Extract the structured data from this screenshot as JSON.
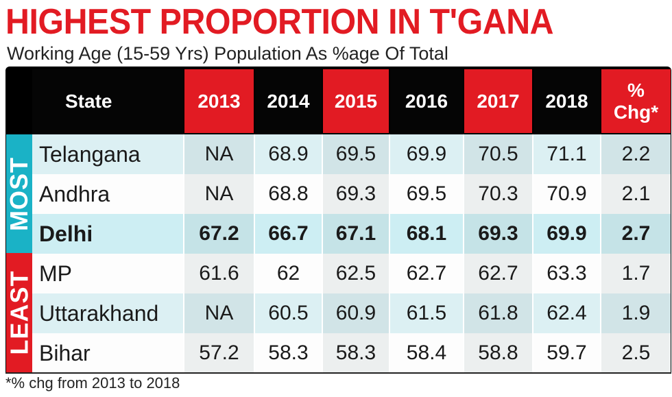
{
  "title": "HIGHEST PROPORTION IN T'GANA",
  "subtitle": "Working Age (15-59 Yrs) Population As %age Of Total",
  "footnote": "*% chg from 2013 to 2018",
  "side_labels": {
    "most": "MOST",
    "least": "LEAST"
  },
  "colors": {
    "red": "#e21b23",
    "teal": "#1ab2c6",
    "black": "#050505"
  },
  "chart_data": {
    "type": "table",
    "title": "HIGHEST PROPORTION IN T'GANA",
    "subtitle": "Working Age (15-59 Yrs) Population As %age Of Total",
    "columns": [
      "State",
      "2013",
      "2014",
      "2015",
      "2016",
      "2017",
      "2018",
      "% Chg*"
    ],
    "chg_label_line1": "%",
    "chg_label_line2": "Chg*",
    "rows": [
      {
        "state": "Telangana",
        "group": "MOST",
        "bold": false,
        "values": [
          "NA",
          "68.9",
          "69.5",
          "69.9",
          "70.5",
          "71.1",
          "2.2"
        ]
      },
      {
        "state": "Andhra",
        "group": "MOST",
        "bold": false,
        "values": [
          "NA",
          "68.8",
          "69.3",
          "69.5",
          "70.3",
          "70.9",
          "2.1"
        ]
      },
      {
        "state": "Delhi",
        "group": "MOST",
        "bold": true,
        "values": [
          "67.2",
          "66.7",
          "67.1",
          "68.1",
          "69.3",
          "69.9",
          "2.7"
        ]
      },
      {
        "state": "MP",
        "group": "LEAST",
        "bold": false,
        "values": [
          "61.6",
          "62",
          "62.5",
          "62.7",
          "62.7",
          "63.3",
          "1.7"
        ]
      },
      {
        "state": "Uttarakhand",
        "group": "LEAST",
        "bold": false,
        "values": [
          "NA",
          "60.5",
          "60.9",
          "61.5",
          "61.8",
          "62.4",
          "1.9"
        ]
      },
      {
        "state": "Bihar",
        "group": "LEAST",
        "bold": false,
        "values": [
          "57.2",
          "58.3",
          "58.3",
          "58.4",
          "58.8",
          "59.7",
          "2.5"
        ]
      }
    ]
  }
}
